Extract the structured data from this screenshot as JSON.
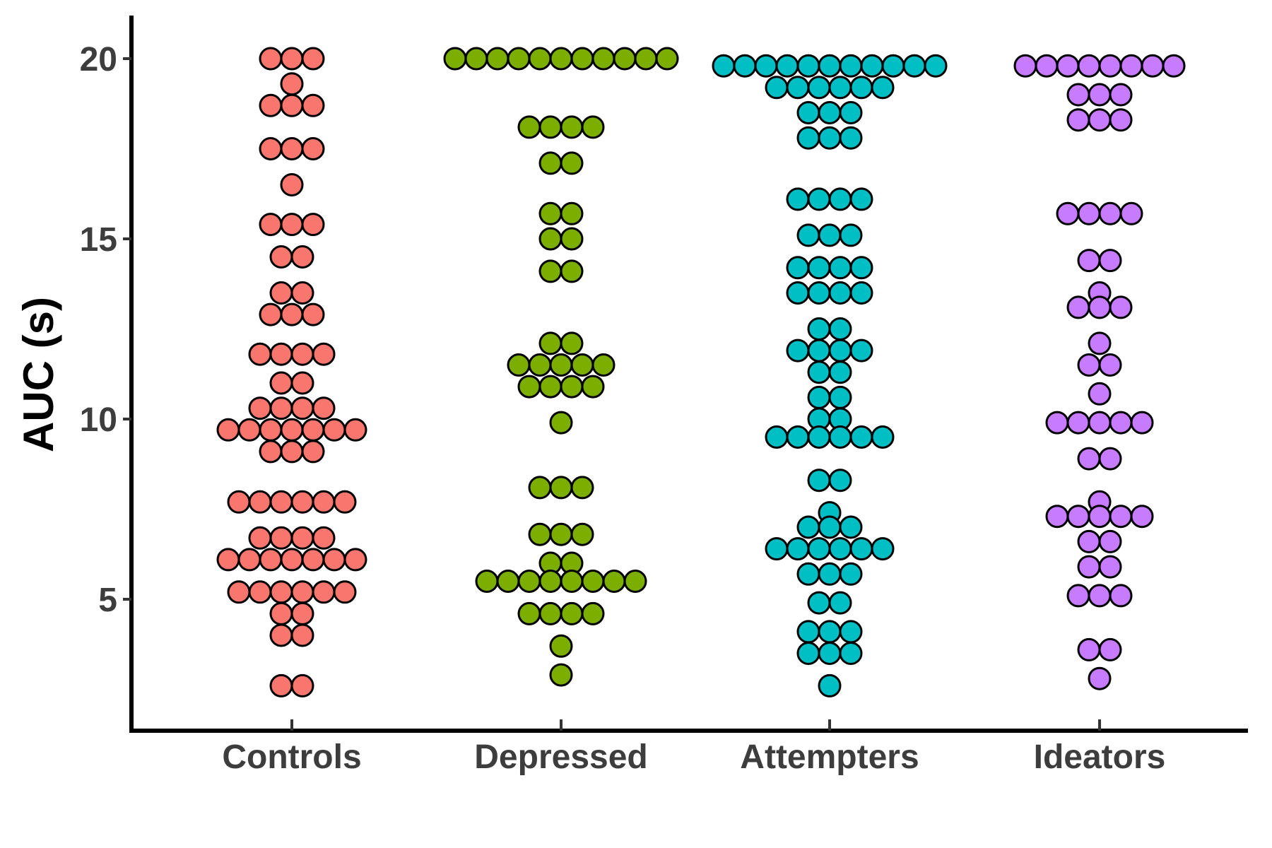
{
  "chart_data": {
    "type": "scatter",
    "subtype": "dotplot",
    "title": "",
    "xlabel": "",
    "ylabel": "AUC (s)",
    "ylim": [
      1.7,
      21.2
    ],
    "yticks": [
      5,
      10,
      15,
      20
    ],
    "grid": false,
    "legend": "none",
    "categories": [
      "Controls",
      "Depressed",
      "Attempters",
      "Ideators"
    ],
    "colors": [
      "#F8766D",
      "#7CAE00",
      "#00BFC4",
      "#C77CFF"
    ],
    "series": [
      {
        "category": "Controls",
        "values": [
          20.0,
          20.0,
          20.0,
          19.3,
          18.7,
          18.7,
          18.7,
          17.5,
          17.5,
          17.5,
          16.5,
          15.4,
          15.4,
          15.4,
          14.5,
          14.5,
          13.5,
          13.5,
          12.9,
          12.9,
          12.9,
          11.8,
          11.8,
          11.8,
          11.8,
          11.0,
          11.0,
          10.3,
          10.3,
          10.3,
          10.3,
          9.7,
          9.7,
          9.7,
          9.7,
          9.7,
          9.7,
          9.7,
          9.1,
          9.1,
          9.1,
          7.7,
          7.7,
          7.7,
          7.7,
          7.7,
          7.7,
          6.7,
          6.7,
          6.7,
          6.7,
          6.1,
          6.1,
          6.1,
          6.1,
          6.1,
          6.1,
          6.1,
          5.2,
          5.2,
          5.2,
          5.2,
          5.2,
          5.2,
          4.6,
          4.6,
          4.0,
          4.0,
          2.6,
          2.6
        ]
      },
      {
        "category": "Depressed",
        "values": [
          20.0,
          20.0,
          20.0,
          20.0,
          20.0,
          20.0,
          20.0,
          20.0,
          20.0,
          20.0,
          20.0,
          18.1,
          18.1,
          18.1,
          18.1,
          17.1,
          17.1,
          15.7,
          15.7,
          15.0,
          15.0,
          14.1,
          14.1,
          12.1,
          12.1,
          11.5,
          11.5,
          11.5,
          11.5,
          11.5,
          10.9,
          10.9,
          10.9,
          10.9,
          9.9,
          8.1,
          8.1,
          8.1,
          6.8,
          6.8,
          6.8,
          6.0,
          6.0,
          5.5,
          5.5,
          5.5,
          5.5,
          5.5,
          5.5,
          5.5,
          5.5,
          4.6,
          4.6,
          4.6,
          4.6,
          3.7,
          2.9
        ]
      },
      {
        "category": "Attempters",
        "values": [
          19.8,
          19.8,
          19.8,
          19.8,
          19.8,
          19.8,
          19.8,
          19.8,
          19.8,
          19.8,
          19.8,
          19.2,
          19.2,
          19.2,
          19.2,
          19.2,
          19.2,
          18.5,
          18.5,
          18.5,
          17.8,
          17.8,
          17.8,
          16.1,
          16.1,
          16.1,
          16.1,
          15.1,
          15.1,
          15.1,
          14.2,
          14.2,
          14.2,
          14.2,
          13.5,
          13.5,
          13.5,
          13.5,
          12.5,
          12.5,
          11.9,
          11.9,
          11.9,
          11.9,
          11.3,
          11.3,
          10.6,
          10.6,
          10.0,
          10.0,
          9.5,
          9.5,
          9.5,
          9.5,
          9.5,
          9.5,
          8.3,
          8.3,
          7.4,
          7.0,
          7.0,
          7.0,
          6.4,
          6.4,
          6.4,
          6.4,
          6.4,
          6.4,
          5.7,
          5.7,
          5.7,
          4.9,
          4.9,
          4.1,
          4.1,
          4.1,
          3.5,
          3.5,
          3.5,
          2.6
        ]
      },
      {
        "category": "Ideators",
        "values": [
          19.8,
          19.8,
          19.8,
          19.8,
          19.8,
          19.8,
          19.8,
          19.8,
          19.0,
          19.0,
          19.0,
          18.3,
          18.3,
          18.3,
          15.7,
          15.7,
          15.7,
          15.7,
          14.4,
          14.4,
          13.5,
          13.1,
          13.1,
          13.1,
          12.1,
          11.5,
          11.5,
          10.7,
          9.9,
          9.9,
          9.9,
          9.9,
          9.9,
          8.9,
          8.9,
          7.7,
          7.3,
          7.3,
          7.3,
          7.3,
          7.3,
          6.6,
          6.6,
          5.9,
          5.9,
          5.1,
          5.1,
          5.1,
          3.6,
          3.6,
          2.8
        ]
      }
    ]
  }
}
